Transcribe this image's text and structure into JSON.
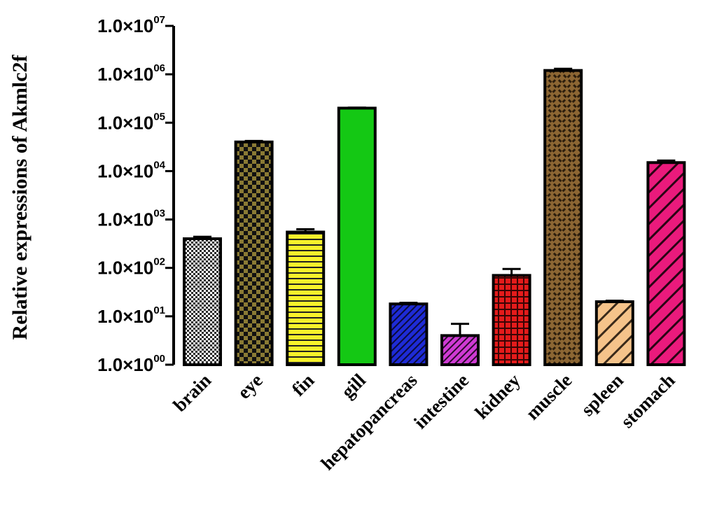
{
  "chart_data": {
    "type": "bar",
    "title": "",
    "xlabel": "",
    "ylabel": "Relative expressions of  Akmlc2f",
    "yscale": "log",
    "ylim": [
      1,
      10000000
    ],
    "ytick_labels": [
      {
        "mantissa": "1.0×10",
        "exp": "00"
      },
      {
        "mantissa": "1.0×10",
        "exp": "01"
      },
      {
        "mantissa": "1.0×10",
        "exp": "02"
      },
      {
        "mantissa": "1.0×10",
        "exp": "03"
      },
      {
        "mantissa": "1.0×10",
        "exp": "04"
      },
      {
        "mantissa": "1.0×10",
        "exp": "05"
      },
      {
        "mantissa": "1.0×10",
        "exp": "06"
      },
      {
        "mantissa": "1.0×10",
        "exp": "07"
      }
    ],
    "categories": [
      "brain",
      "eye",
      "fin",
      "gill",
      "hepatopancreas",
      "intestine",
      "kidney",
      "muscle",
      "spleen",
      "stomach"
    ],
    "values": [
      400,
      40000,
      550,
      200000,
      18,
      4,
      70,
      1200000,
      20,
      15000
    ],
    "errors": [
      40,
      2000,
      80,
      5000,
      1,
      3,
      25,
      100000,
      1,
      1500
    ],
    "colors": [
      "#c8c8c8",
      "#7a6a2e",
      "#f2ef2a",
      "#14c814",
      "#1e2bd6",
      "#c224c8",
      "#e01818",
      "#8c6633",
      "#f5c38a",
      "#e8187a"
    ],
    "patterns": [
      "checker-fine",
      "checker",
      "horizontal",
      "solid",
      "diagonal",
      "diagonal",
      "grid",
      "weave",
      "diagonal-wide",
      "diagonal-wide"
    ],
    "grid": false,
    "legend": "none"
  }
}
